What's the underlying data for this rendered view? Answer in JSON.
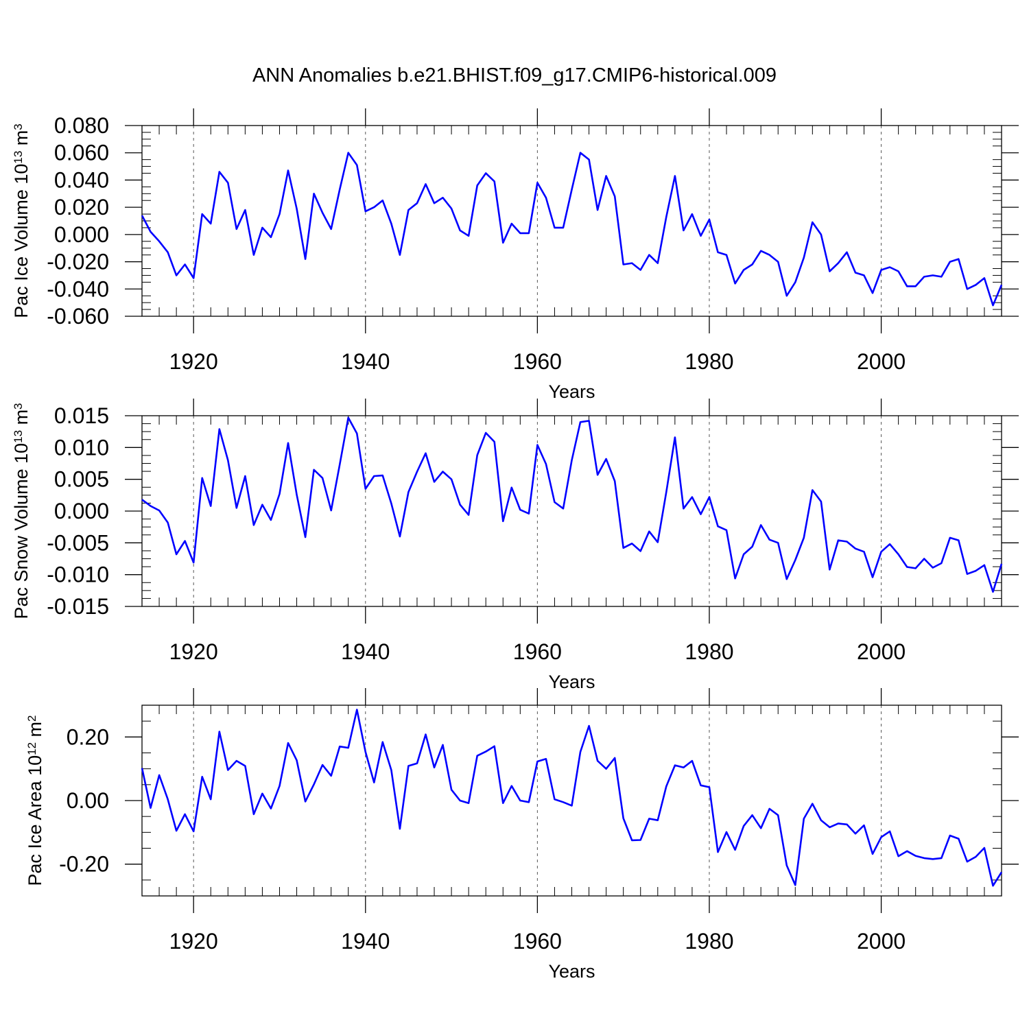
{
  "figure": {
    "title": "ANN Anomalies b.e21.BHIST.f09_g17.CMIP6-historical.009",
    "line_color": "#0000ff"
  },
  "chart_data": [
    {
      "type": "line",
      "title": "",
      "xlabel": "Years",
      "ylabel": {
        "prefix": "Pac Ice Volume 10",
        "exponent": "13",
        "unit": " m",
        "unit_exponent": "3"
      },
      "xlim": [
        1914,
        2014
      ],
      "ylim": [
        -0.06,
        0.08
      ],
      "xticks": [
        1920,
        1940,
        1960,
        1980,
        2000
      ],
      "xtick_labels": [
        "1920",
        "1940",
        "1960",
        "1980",
        "2000"
      ],
      "yticks": [
        0.08,
        0.06,
        0.04,
        0.02,
        0.0,
        -0.02,
        -0.04,
        -0.06
      ],
      "ytick_labels": [
        "0.080",
        "0.060",
        "0.040",
        "0.020",
        "0.000",
        "-0.020",
        "-0.040",
        "-0.060"
      ],
      "grid_x_dashed": true,
      "series": [
        {
          "name": "Pac Ice Volume",
          "x_start": 1914,
          "values": [
            0.014,
            0.002,
            -0.005,
            -0.013,
            -0.03,
            -0.022,
            -0.032,
            0.015,
            0.008,
            0.046,
            0.038,
            0.004,
            0.018,
            -0.015,
            0.005,
            -0.002,
            0.015,
            0.047,
            0.019,
            -0.018,
            0.03,
            0.016,
            0.004,
            0.033,
            0.06,
            0.051,
            0.017,
            0.02,
            0.025,
            0.008,
            -0.015,
            0.018,
            0.023,
            0.037,
            0.023,
            0.027,
            0.019,
            0.003,
            -0.001,
            0.036,
            0.045,
            0.039,
            -0.006,
            0.008,
            0.001,
            0.001,
            0.038,
            0.027,
            0.005,
            0.005,
            0.033,
            0.06,
            0.055,
            0.018,
            0.043,
            0.028,
            -0.022,
            -0.021,
            -0.026,
            -0.015,
            -0.021,
            0.013,
            0.043,
            0.003,
            0.015,
            -0.001,
            0.011,
            -0.013,
            -0.015,
            -0.036,
            -0.026,
            -0.022,
            -0.012,
            -0.015,
            -0.02,
            -0.045,
            -0.035,
            -0.017,
            0.009,
            0.0,
            -0.027,
            -0.021,
            -0.013,
            -0.028,
            -0.03,
            -0.043,
            -0.026,
            -0.024,
            -0.027,
            -0.038,
            -0.038,
            -0.031,
            -0.03,
            -0.031,
            -0.02,
            -0.018,
            -0.04,
            -0.037,
            -0.032,
            -0.052,
            -0.037
          ]
        }
      ]
    },
    {
      "type": "line",
      "title": "",
      "xlabel": "Years",
      "ylabel": {
        "prefix": "Pac Snow Volume 10",
        "exponent": "13",
        "unit": " m",
        "unit_exponent": "3"
      },
      "xlim": [
        1914,
        2014
      ],
      "ylim": [
        -0.015,
        0.015
      ],
      "xticks": [
        1920,
        1940,
        1960,
        1980,
        2000
      ],
      "xtick_labels": [
        "1920",
        "1940",
        "1960",
        "1980",
        "2000"
      ],
      "yticks": [
        0.015,
        0.01,
        0.005,
        0.0,
        -0.005,
        -0.01,
        -0.015
      ],
      "ytick_labels": [
        "0.015",
        "0.010",
        "0.005",
        "0.000",
        "-0.005",
        "-0.010",
        "-0.015"
      ],
      "grid_x_dashed": true,
      "series": [
        {
          "name": "Pac Snow Volume",
          "x_start": 1914,
          "values": [
            0.0018,
            0.0008,
            0.0001,
            -0.0018,
            -0.0068,
            -0.0047,
            -0.0081,
            0.0052,
            0.0008,
            0.0129,
            0.008,
            0.0005,
            0.0055,
            -0.0022,
            0.001,
            -0.0014,
            0.0027,
            0.0107,
            0.0026,
            -0.0041,
            0.0065,
            0.0052,
            0.0001,
            0.0073,
            0.0147,
            0.0122,
            0.0035,
            0.0055,
            0.0056,
            0.0012,
            -0.004,
            0.003,
            0.0062,
            0.0091,
            0.0046,
            0.0062,
            0.005,
            0.001,
            -0.0006,
            0.0088,
            0.0123,
            0.0109,
            -0.0016,
            0.0037,
            0.0002,
            -0.0004,
            0.0104,
            0.0074,
            0.0014,
            0.0004,
            0.008,
            0.014,
            0.0142,
            0.0057,
            0.0082,
            0.0047,
            -0.0058,
            -0.0051,
            -0.0063,
            -0.0032,
            -0.0049,
            0.003,
            0.0116,
            0.0004,
            0.0022,
            -0.0005,
            0.0022,
            -0.0024,
            -0.003,
            -0.0106,
            -0.0068,
            -0.0056,
            -0.0022,
            -0.0045,
            -0.005,
            -0.0107,
            -0.0077,
            -0.0042,
            0.0033,
            0.0015,
            -0.0092,
            -0.0046,
            -0.0048,
            -0.0059,
            -0.0064,
            -0.0104,
            -0.0064,
            -0.0052,
            -0.0068,
            -0.0088,
            -0.009,
            -0.0075,
            -0.0089,
            -0.0082,
            -0.0042,
            -0.0046,
            -0.0099,
            -0.0094,
            -0.0085,
            -0.0127,
            -0.0083
          ]
        }
      ]
    },
    {
      "type": "line",
      "title": "",
      "xlabel": "Years",
      "ylabel": {
        "prefix": "Pac Ice Area 10",
        "exponent": "12",
        "unit": " m",
        "unit_exponent": "2"
      },
      "xlim": [
        1914,
        2014
      ],
      "ylim": [
        -0.3,
        0.3
      ],
      "xticks": [
        1920,
        1940,
        1960,
        1980,
        2000
      ],
      "xtick_labels": [
        "1920",
        "1940",
        "1960",
        "1980",
        "2000"
      ],
      "yticks": [
        0.2,
        0.0,
        -0.2
      ],
      "ytick_labels": [
        "0.20",
        "0.00",
        "-0.20"
      ],
      "grid_x_dashed": true,
      "series": [
        {
          "name": "Pac Ice Area",
          "x_start": 1914,
          "values": [
            0.102,
            -0.023,
            0.08,
            0.004,
            -0.095,
            -0.043,
            -0.097,
            0.075,
            0.004,
            0.217,
            0.096,
            0.125,
            0.109,
            -0.043,
            0.022,
            -0.025,
            0.046,
            0.181,
            0.127,
            -0.003,
            0.051,
            0.112,
            0.078,
            0.17,
            0.166,
            0.286,
            0.153,
            0.057,
            0.184,
            0.096,
            -0.089,
            0.109,
            0.117,
            0.208,
            0.104,
            0.175,
            0.034,
            0.0,
            -0.008,
            0.141,
            0.154,
            0.171,
            -0.008,
            0.046,
            0.0,
            -0.005,
            0.123,
            0.131,
            0.004,
            -0.005,
            -0.016,
            0.153,
            0.235,
            0.125,
            0.1,
            0.134,
            -0.056,
            -0.125,
            -0.124,
            -0.057,
            -0.062,
            0.045,
            0.111,
            0.104,
            0.125,
            0.048,
            0.042,
            -0.162,
            -0.099,
            -0.155,
            -0.08,
            -0.046,
            -0.087,
            -0.026,
            -0.046,
            -0.204,
            -0.266,
            -0.057,
            -0.01,
            -0.062,
            -0.084,
            -0.072,
            -0.075,
            -0.104,
            -0.078,
            -0.168,
            -0.115,
            -0.097,
            -0.175,
            -0.159,
            -0.174,
            -0.181,
            -0.184,
            -0.181,
            -0.11,
            -0.12,
            -0.192,
            -0.177,
            -0.149,
            -0.268,
            -0.225
          ]
        }
      ]
    }
  ]
}
